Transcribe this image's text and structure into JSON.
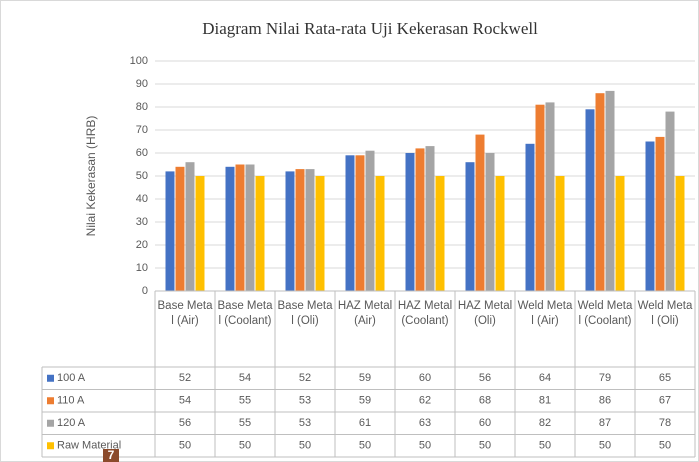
{
  "chart_data": {
    "type": "bar",
    "title": "Diagram Nilai Rata-rata Uji Kekerasan Rockwell",
    "y_label": "Nilai Kekerasan (HRB)",
    "categories": [
      "Base Metal (Air)",
      "Base Metal (Coolant)",
      "Base Metal (Oli)",
      "HAZ Metal (Air)",
      "HAZ Metal (Coolant)",
      "HAZ Metal (Oli)",
      "Weld Metal (Air)",
      "Weld Metal (Coolant)",
      "Weld Metal (Oli)"
    ],
    "series": [
      {
        "name": "100 A",
        "color": "#4472c4",
        "values": [
          52,
          54,
          52,
          59,
          60,
          56,
          64,
          79,
          65
        ]
      },
      {
        "name": "110 A",
        "color": "#ed7d31",
        "values": [
          54,
          55,
          53,
          59,
          62,
          68,
          81,
          86,
          67
        ]
      },
      {
        "name": "120 A",
        "color": "#a5a5a5",
        "values": [
          56,
          55,
          53,
          61,
          63,
          60,
          82,
          87,
          78
        ]
      },
      {
        "name": "Raw Material",
        "color": "#ffc000",
        "values": [
          50,
          50,
          50,
          50,
          50,
          50,
          50,
          50,
          50
        ]
      }
    ],
    "ylim": [
      0,
      100
    ],
    "yticks": [
      0,
      10,
      20,
      30,
      40,
      50,
      60,
      70,
      80,
      90,
      100
    ],
    "grid": true,
    "badge": "7"
  }
}
